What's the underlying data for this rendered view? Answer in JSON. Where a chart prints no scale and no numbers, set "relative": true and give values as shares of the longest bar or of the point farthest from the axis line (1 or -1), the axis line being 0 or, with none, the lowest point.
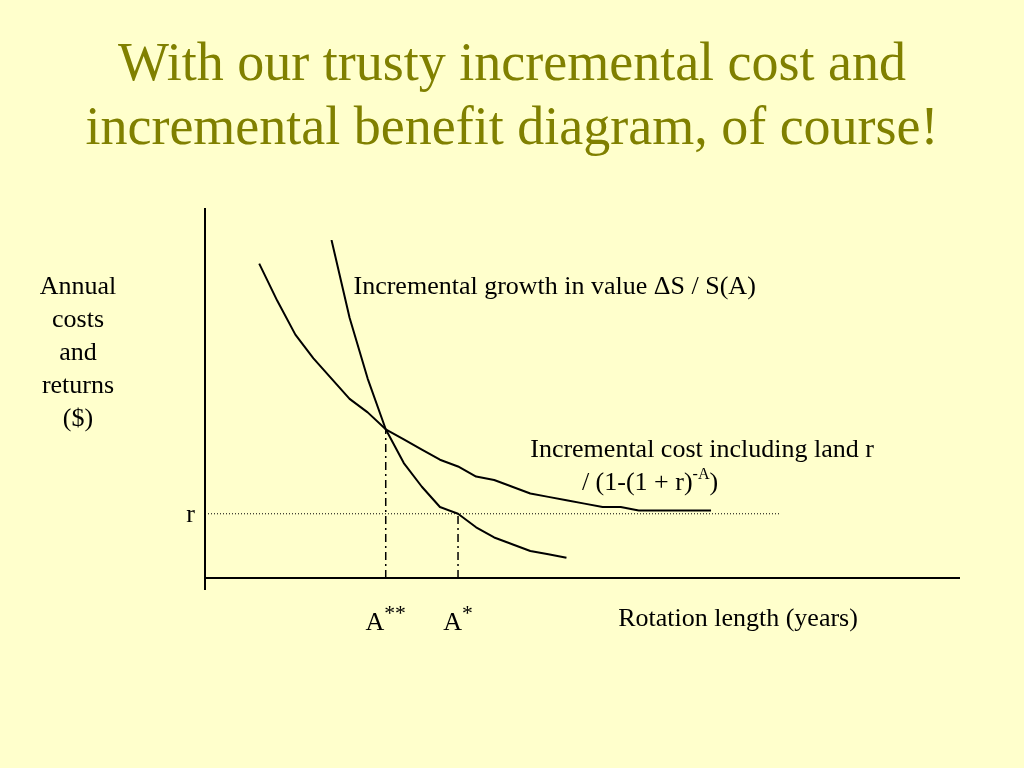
{
  "chart_data": {
    "type": "line",
    "title": "With our trusty incremental cost and incremental benefit diagram, of course!",
    "ylabel": "Annual costs and returns ($)",
    "xlabel": "Rotation length (years)",
    "relative": true,
    "marker": "none",
    "line_style": "solid",
    "categories": [
      null,
      null,
      null,
      null,
      null,
      null,
      null,
      null,
      null,
      null,
      "A$^{**}$",
      null,
      null,
      null,
      "A$^{*}$",
      null,
      null,
      null,
      null,
      null,
      null,
      null,
      null,
      null,
      null,
      null,
      null,
      null,
      null,
      null,
      null,
      null,
      null,
      null,
      null,
      null,
      null,
      null,
      null,
      null,
      null,
      null
    ],
    "series": [
      {
        "name": "Incremental growth in value ΔS / S(A)",
        "color": "#000000",
        "values": [
          null,
          null,
          null,
          null,
          null,
          null,
          null,
          1,
          0.77,
          0.59,
          0.44,
          0.34,
          0.27,
          0.21,
          0.19,
          0.15,
          0.12,
          0.1,
          0.08,
          0.07,
          0.06,
          null,
          null,
          null,
          null,
          null,
          null,
          null,
          null,
          null,
          null,
          null,
          null,
          null,
          null,
          null,
          null,
          null,
          null,
          null,
          null,
          null
        ]
      },
      {
        "name": "Incremental cost including land r / (1-(1 + r)$^{-A}$)",
        "color": "#000000",
        "values": [
          null,
          null,
          null,
          0.93,
          0.82,
          0.72,
          0.65,
          0.59,
          0.53,
          0.49,
          0.44,
          0.41,
          0.38,
          0.35,
          0.33,
          0.3,
          0.29,
          0.27,
          0.25,
          0.24,
          0.23,
          0.22,
          0.21,
          0.21,
          0.2,
          0.2,
          0.2,
          0.2,
          0.2,
          null,
          null,
          null,
          null,
          null,
          null,
          null,
          null,
          null,
          null,
          null,
          null,
          null
        ]
      }
    ],
    "ref_lines": [
      {
        "axis": "y",
        "value": 0.19,
        "label": "r",
        "line_style": "dotted"
      },
      {
        "axis": "x",
        "value": "A$^{**}$",
        "label": null,
        "line_style": "dashed"
      },
      {
        "axis": "x",
        "value": "A$^{*}$",
        "label": null,
        "line_style": "dashed"
      }
    ]
  }
}
